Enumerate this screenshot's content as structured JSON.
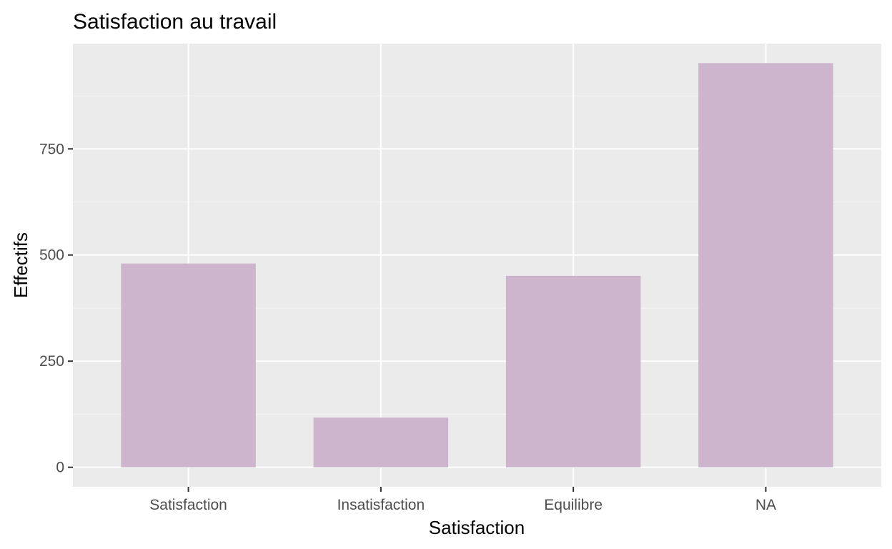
{
  "chart_data": {
    "type": "bar",
    "title": "Satisfaction au travail",
    "xlabel": "Satisfaction",
    "ylabel": "Effectifs",
    "categories": [
      "Satisfaction",
      "Insatisfaction",
      "Equilibre",
      "NA"
    ],
    "values": [
      480,
      117,
      451,
      952
    ],
    "ylim": [
      -46,
      998
    ],
    "yticks": [
      0,
      250,
      500,
      750
    ],
    "ytick_labels": [
      "0",
      "250",
      "500",
      "750"
    ],
    "grid": true,
    "legend": "none"
  },
  "colors": {
    "bar_fill": "#cdb5cd",
    "panel_background": "#ebebeb",
    "grid_major": "#ffffff",
    "grid_minor": "#f5f5f5",
    "tick_color": "#333333"
  }
}
